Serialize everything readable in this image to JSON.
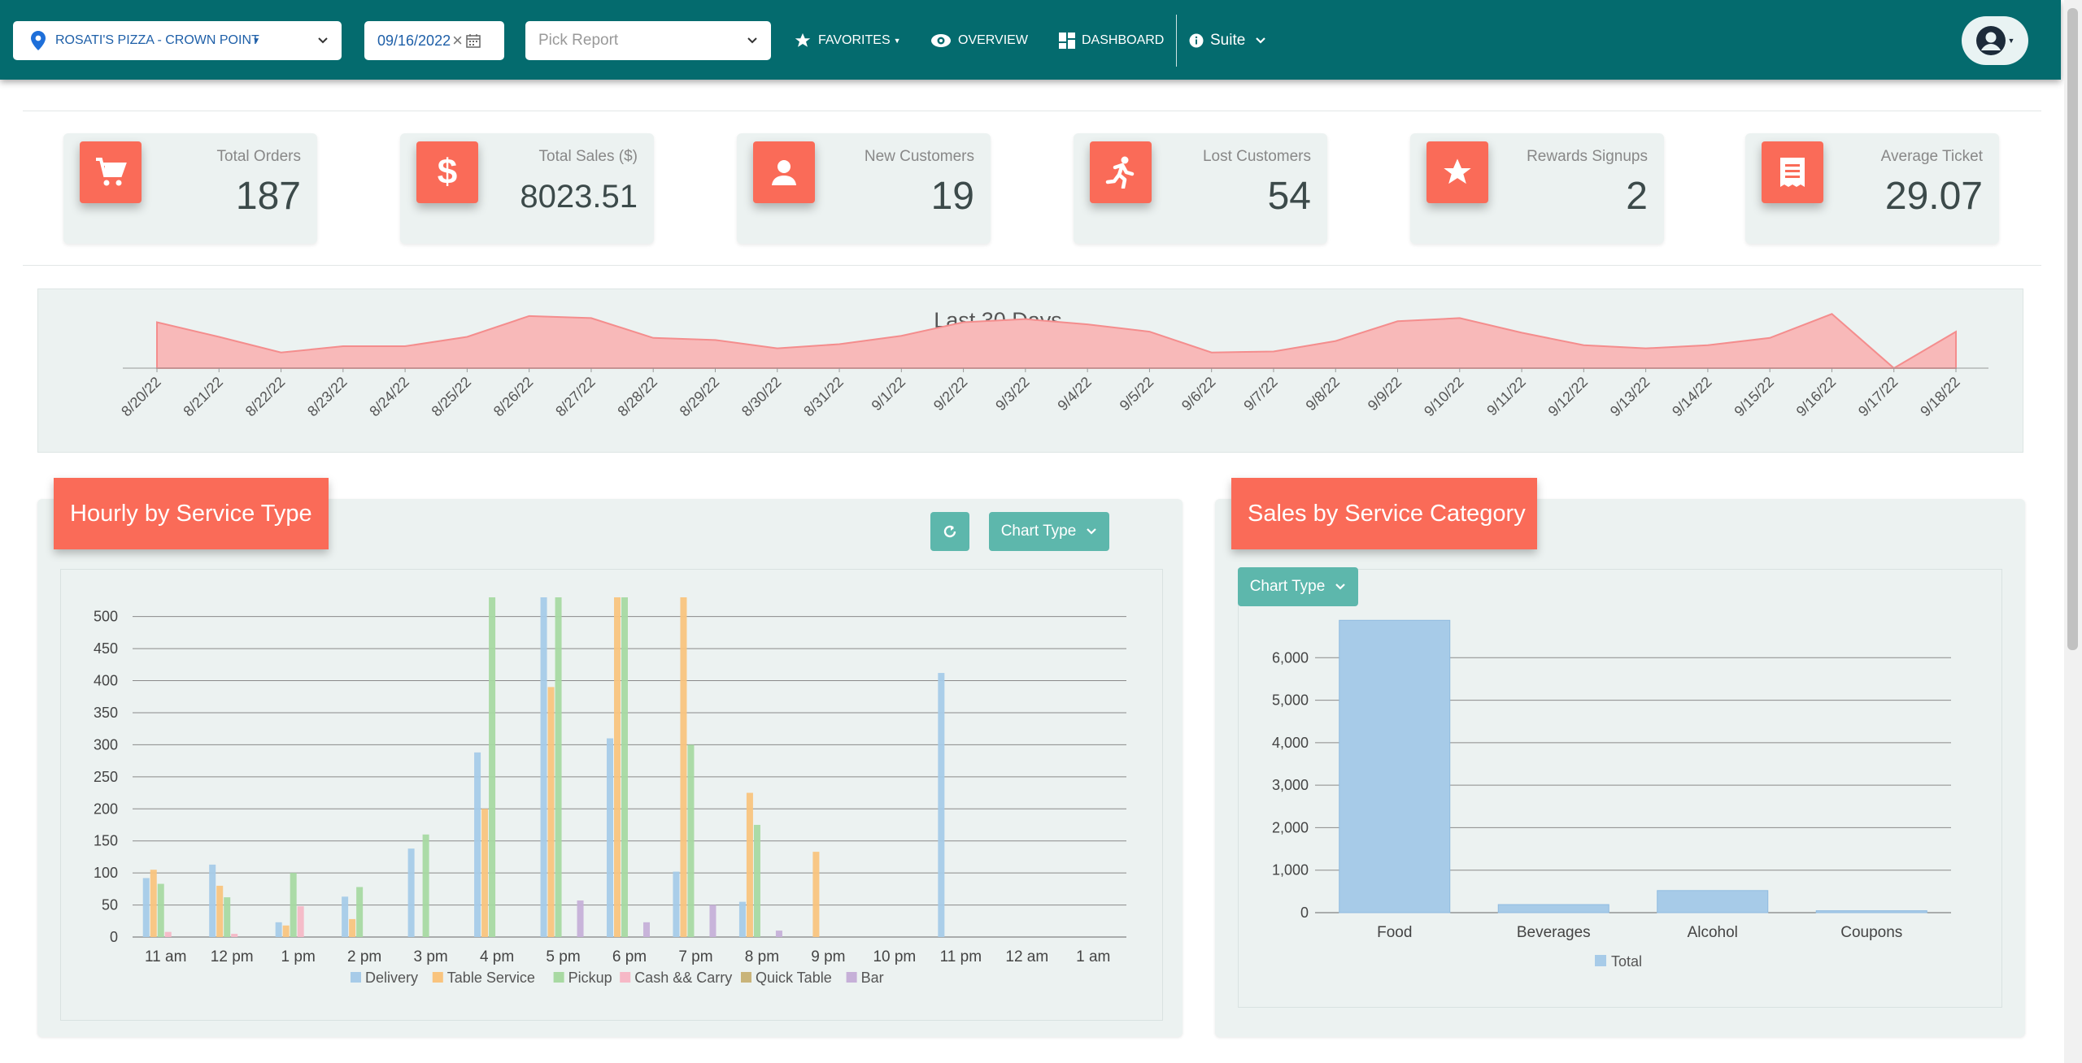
{
  "header": {
    "location": "ROSATI'S PIZZA - CROWN POINT",
    "date": "09/16/2022",
    "report_placeholder": "Pick Report",
    "favorites": "FAVORITES",
    "overview": "OVERVIEW",
    "dashboard": "DASHBOARD",
    "suite": "Suite"
  },
  "kpis": [
    {
      "label": "Total Orders",
      "value": "187",
      "icon": "cart-icon"
    },
    {
      "label": "Total Sales ($)",
      "value": "8023.51",
      "icon": "dollar-icon"
    },
    {
      "label": "New Customers",
      "value": "19",
      "icon": "person-icon"
    },
    {
      "label": "Lost Customers",
      "value": "54",
      "icon": "running-person-icon"
    },
    {
      "label": "Rewards Signups",
      "value": "2",
      "icon": "star-icon"
    },
    {
      "label": "Average Ticket",
      "value": "29.07",
      "icon": "receipt-icon"
    }
  ],
  "colors": {
    "header": "#046b6e",
    "accent": "#fa6b58",
    "teal_button": "#5db7ac",
    "trend_fill": "#f8b9b9",
    "trend_line": "#f48d8d",
    "delivery": "#a7cbe8",
    "table_service": "#f9c47e",
    "pickup": "#a8d9a2",
    "cash_carry": "#f6b8c6",
    "quick_table": "#c9b47a",
    "bar": "#c6b0d8"
  },
  "chart_data": [
    {
      "type": "area",
      "title": "Last 30 Days",
      "x": [
        "8/20/22",
        "8/21/22",
        "8/22/22",
        "8/23/22",
        "8/24/22",
        "8/25/22",
        "8/26/22",
        "8/27/22",
        "8/28/22",
        "8/29/22",
        "8/30/22",
        "8/31/22",
        "9/1/22",
        "9/2/22",
        "9/3/22",
        "9/4/22",
        "9/5/22",
        "9/6/22",
        "9/7/22",
        "9/8/22",
        "9/9/22",
        "9/10/22",
        "9/11/22",
        "9/12/22",
        "9/13/22",
        "9/14/22",
        "9/15/22",
        "9/16/22",
        "9/17/22",
        "9/18/22"
      ],
      "values": [
        44,
        30,
        15,
        21,
        21,
        30,
        50,
        48,
        29,
        27,
        19,
        23,
        31,
        44,
        47,
        42,
        35,
        15,
        16,
        26,
        45,
        48,
        34,
        22,
        19,
        22,
        29,
        52,
        0,
        35
      ],
      "ylim": [
        0,
        60
      ],
      "grid": false
    },
    {
      "type": "bar",
      "title": "Hourly by Service Type",
      "categories": [
        "11 am",
        "12 pm",
        "1 pm",
        "2 pm",
        "3 pm",
        "4 pm",
        "5 pm",
        "6 pm",
        "7 pm",
        "8 pm",
        "9 pm",
        "10 pm",
        "11 pm",
        "12 am",
        "1 am"
      ],
      "series": [
        {
          "name": "Delivery",
          "values": [
            92,
            113,
            23,
            63,
            138,
            288,
            530,
            310,
            102,
            55,
            0,
            0,
            412,
            0,
            0
          ]
        },
        {
          "name": "Table Service",
          "values": [
            105,
            80,
            18,
            28,
            0,
            200,
            390,
            530,
            530,
            225,
            133,
            0,
            0,
            0,
            0
          ]
        },
        {
          "name": "Pickup",
          "values": [
            83,
            62,
            100,
            78,
            160,
            530,
            530,
            530,
            300,
            175,
            0,
            0,
            0,
            0,
            0
          ]
        },
        {
          "name": "Cash && Carry",
          "values": [
            8,
            5,
            48,
            0,
            0,
            0,
            0,
            0,
            0,
            0,
            0,
            0,
            0,
            0,
            0
          ]
        },
        {
          "name": "Quick Table",
          "values": [
            0,
            0,
            0,
            0,
            0,
            0,
            0,
            0,
            0,
            0,
            0,
            0,
            0,
            0,
            0
          ]
        },
        {
          "name": "Bar",
          "values": [
            0,
            0,
            0,
            0,
            0,
            0,
            57,
            23,
            50,
            10,
            0,
            0,
            0,
            0,
            0
          ]
        }
      ],
      "yticks": [
        0,
        50,
        100,
        150,
        200,
        250,
        300,
        350,
        400,
        450,
        500
      ],
      "ylim": [
        0,
        530
      ],
      "grid": true,
      "legend": "bottom",
      "toolbar": {
        "chart_type": "Chart Type"
      }
    },
    {
      "type": "bar",
      "title": "Sales by Service Category",
      "categories": [
        "Food",
        "Beverages",
        "Alcohol",
        "Coupons"
      ],
      "series": [
        {
          "name": "Total",
          "values": [
            6880,
            190,
            520,
            45
          ]
        }
      ],
      "yticks": [
        0,
        1000,
        2000,
        3000,
        4000,
        5000,
        6000
      ],
      "ytick_labels": [
        "0",
        "1,000",
        "2,000",
        "3,000",
        "4,000",
        "5,000",
        "6,000"
      ],
      "ylim": [
        0,
        7000
      ],
      "grid": true,
      "legend": "bottom",
      "toolbar": {
        "chart_type": "Chart Type"
      }
    }
  ]
}
